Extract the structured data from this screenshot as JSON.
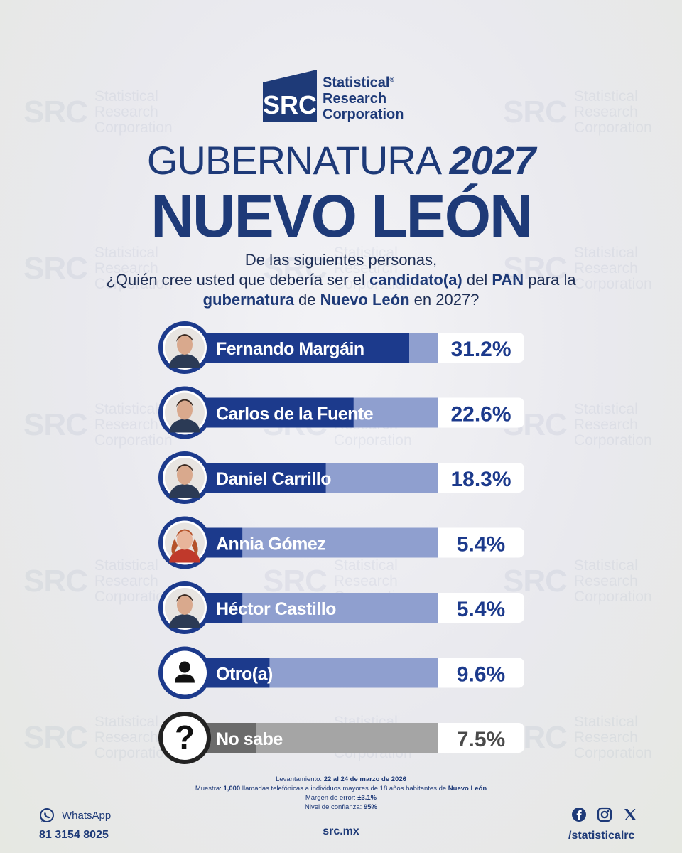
{
  "watermark": {
    "mark": "SRC",
    "lines": [
      "Statistical",
      "Research",
      "Corporation"
    ]
  },
  "logo": {
    "mark": "SRC",
    "line1": "Statistical",
    "line2": "Research",
    "line3": "Corporation",
    "registered": "®"
  },
  "title": {
    "line1_light": "GUBERNATURA ",
    "line1_bold": "2027",
    "line2": "NUEVO LEÓN"
  },
  "question": {
    "line1": "De las siguientes personas,",
    "line2a": "¿Quién cree usted que debería ser el ",
    "line2b": "candidato(a)",
    "line2c": " del ",
    "line2d": "PAN",
    "line2e": " para la",
    "line3a": "gubernatura",
    "line3b": " de ",
    "line3c": "Nuevo León",
    "line3d": " en 2027?"
  },
  "chart_data": {
    "type": "bar",
    "orientation": "horizontal",
    "categories": [
      "Fernando Margáin",
      "Carlos de la Fuente",
      "Daniel Carrillo",
      "Annia Gómez",
      "Héctor Castillo",
      "Otro(a)",
      "No sabe"
    ],
    "values": [
      31.2,
      22.6,
      18.3,
      5.4,
      5.4,
      9.6,
      7.5
    ],
    "value_labels": [
      "31.2%",
      "22.6%",
      "18.3%",
      "5.4%",
      "5.4%",
      "9.6%",
      "7.5%"
    ],
    "icons": [
      "photo",
      "photo",
      "photo",
      "photo",
      "photo",
      "person-icon",
      "question-icon"
    ],
    "colors": {
      "primary": "#1c3a8c",
      "light": "#8f9fcf",
      "gray": "#6b6b6b",
      "gray_light": "#a5a5a5"
    }
  },
  "footer": {
    "lev_label": "Levantamiento: ",
    "lev_value": "22 al 24 de marzo de 2026",
    "muestra_label": "Muestra: ",
    "muestra_n": "1,000",
    "muestra_text": " llamadas telefónicas a individuos mayores de 18 años habitantes de ",
    "muestra_place": "Nuevo León",
    "margen_label": "Margen de error: ",
    "margen_value": "±3.1%",
    "nivel_label": "Nivel de confianza: ",
    "nivel_value": "95%",
    "site": "src.mx",
    "whatsapp_label": "WhatsApp",
    "phone": "81 3154 8025",
    "handle": "/statisticalrc"
  }
}
